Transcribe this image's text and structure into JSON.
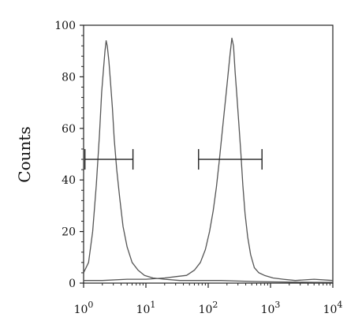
{
  "chart_data": {
    "type": "line",
    "title": "",
    "xlabel": "",
    "ylabel": "Counts",
    "xscale": "log",
    "xlim": [
      1,
      10000
    ],
    "ylim": [
      0,
      100
    ],
    "grid": false,
    "y_ticks": [
      {
        "value": 0,
        "label": "0"
      },
      {
        "value": 20,
        "label": "20"
      },
      {
        "value": 40,
        "label": "40"
      },
      {
        "value": 60,
        "label": "60"
      },
      {
        "value": 80,
        "label": "80"
      },
      {
        "value": 100,
        "label": "100"
      }
    ],
    "x_ticks": [
      {
        "value": 1,
        "base": "10",
        "exp": "0"
      },
      {
        "value": 10,
        "base": "10",
        "exp": "1"
      },
      {
        "value": 100,
        "base": "10",
        "exp": "2"
      },
      {
        "value": 1000,
        "base": "10",
        "exp": "3"
      },
      {
        "value": 10000,
        "base": "10",
        "exp": "4"
      }
    ],
    "line_color": "#555555",
    "series": [
      {
        "x": [
          1,
          1.2,
          1.4,
          1.6,
          1.8,
          1.95,
          2.1,
          2.2,
          2.3,
          2.4,
          2.55,
          2.7,
          2.9,
          3.1,
          3.4,
          3.8,
          4.3,
          5.0,
          6.0,
          7.5,
          9.5,
          13,
          20,
          35,
          60,
          100,
          160,
          300,
          600,
          1000,
          2000,
          5000,
          10000
        ],
        "y": [
          4,
          8,
          20,
          38,
          58,
          74,
          84,
          90,
          94,
          92,
          86,
          78,
          68,
          56,
          44,
          33,
          22,
          14,
          8,
          5,
          3,
          2,
          1.5,
          1,
          1,
          1,
          1,
          0.8,
          0.6,
          0.5,
          0.4,
          0.3,
          0.3
        ]
      },
      {
        "x": [
          1,
          2,
          5,
          10,
          20,
          30,
          45,
          60,
          75,
          90,
          105,
          120,
          135,
          150,
          165,
          180,
          195,
          210,
          225,
          240,
          255,
          270,
          290,
          310,
          335,
          360,
          390,
          430,
          480,
          550,
          650,
          800,
          1100,
          1600,
          2500,
          5000,
          10000
        ],
        "y": [
          1,
          1,
          1.5,
          1.5,
          2,
          2.5,
          3,
          5,
          8,
          13,
          20,
          28,
          37,
          47,
          57,
          66,
          74,
          82,
          89,
          95,
          92,
          82,
          72,
          62,
          50,
          38,
          27,
          18,
          11,
          6,
          4,
          3,
          2,
          1.5,
          1,
          1.5,
          1
        ]
      }
    ],
    "markers": [
      {
        "x_start": 1.05,
        "x_end": 6.2,
        "y": 48
      },
      {
        "x_start": 70,
        "x_end": 730,
        "y": 48
      }
    ]
  }
}
